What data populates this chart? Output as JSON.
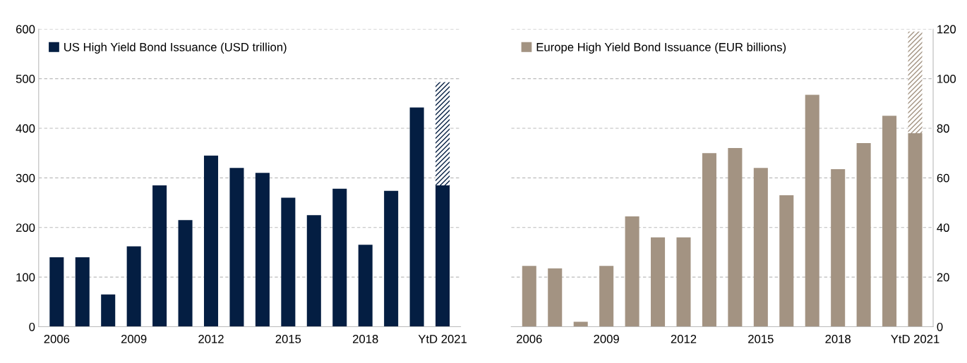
{
  "chart_data": [
    {
      "type": "bar",
      "stacked": true,
      "categories": [
        "2006",
        null,
        null,
        "2009",
        null,
        null,
        "2012",
        null,
        null,
        "2015",
        null,
        null,
        "2018",
        null,
        null,
        "YtD 2021"
      ],
      "series": [
        {
          "name": "US High Yield Bond Issuance (USD trillion)",
          "color": "#041e42",
          "values": [
            140,
            140,
            65,
            162,
            285,
            215,
            345,
            320,
            310,
            260,
            225,
            278,
            165,
            274,
            442,
            285
          ]
        },
        {
          "color": "#041e42",
          "values": [
            null,
            null,
            null,
            null,
            null,
            null,
            null,
            null,
            null,
            null,
            null,
            null,
            null,
            null,
            null,
            208
          ]
        }
      ],
      "ylim": [
        0,
        600
      ],
      "yticks": [
        0,
        100,
        200,
        300,
        400,
        500,
        600
      ],
      "grid": "y",
      "legend": "top left"
    },
    {
      "type": "bar",
      "stacked": true,
      "categories": [
        "2006",
        null,
        null,
        "2009",
        null,
        null,
        "2012",
        null,
        null,
        "2015",
        null,
        null,
        "2018",
        null,
        null,
        "YtD 2021"
      ],
      "series": [
        {
          "name": "Europe High Yield Bond Issuance (EUR billions)",
          "color": "#a39382",
          "values": [
            24.5,
            23.5,
            2,
            24.5,
            44.5,
            36,
            36,
            70,
            72,
            64,
            53,
            93.5,
            63.5,
            74,
            85,
            78
          ]
        },
        {
          "color": "#a39382",
          "values": [
            null,
            null,
            null,
            null,
            null,
            null,
            null,
            null,
            null,
            null,
            null,
            null,
            null,
            null,
            null,
            41
          ]
        }
      ],
      "ylim": [
        0,
        120
      ],
      "yticks": [
        0,
        20,
        40,
        60,
        80,
        100,
        120
      ],
      "grid": "y",
      "legend": "top left"
    }
  ]
}
